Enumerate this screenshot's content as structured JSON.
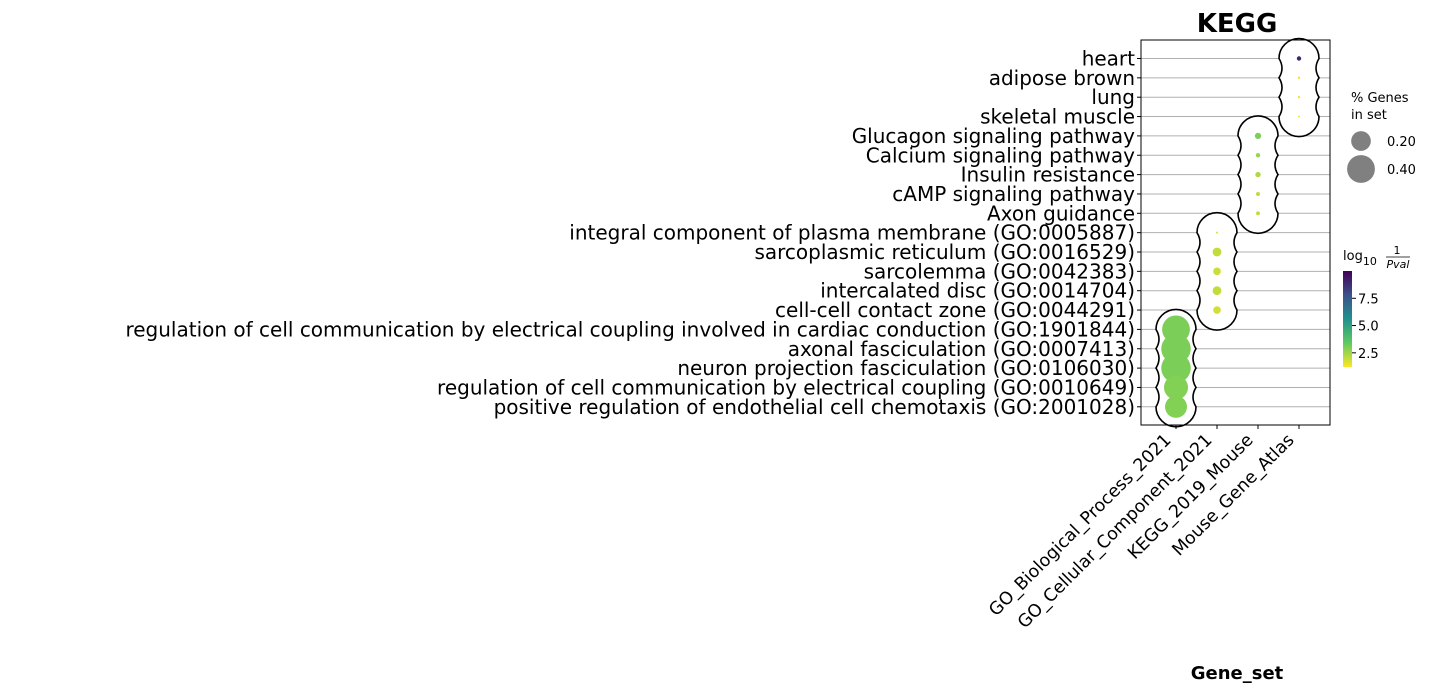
{
  "chart_data": {
    "type": "scatter",
    "title": "KEGG",
    "xlabel": "Gene_set",
    "x_categories": [
      "GO_Biological_Process_2021",
      "GO_Cellular_Component_2021",
      "KEGG_2019_Mouse",
      "Mouse_Gene_Atlas"
    ],
    "y_categories": [
      "heart",
      "adipose brown",
      "lung",
      "skeletal muscle",
      "Glucagon signaling pathway",
      "Calcium signaling pathway",
      "Insulin resistance",
      "cAMP signaling pathway",
      "Axon guidance",
      "integral component of plasma membrane (GO:0005887)",
      "sarcoplasmic reticulum (GO:0016529)",
      "sarcolemma (GO:0042383)",
      "intercalated disc (GO:0014704)",
      "cell-cell contact zone (GO:0044291)",
      "regulation of cell communication by electrical coupling involved in cardiac conduction (GO:1901844)",
      "axonal fasciculation (GO:0007413)",
      "neuron projection fasciculation (GO:0106030)",
      "regulation of cell communication by electrical coupling (GO:0010649)",
      "positive regulation of endothelial cell chemotaxis (GO:2001028)"
    ],
    "points": [
      {
        "term": "heart",
        "gene_set": "Mouse_Gene_Atlas",
        "pct_genes": 0.01,
        "log10_inv_pval": 9.0
      },
      {
        "term": "adipose brown",
        "gene_set": "Mouse_Gene_Atlas",
        "pct_genes": 0.003,
        "log10_inv_pval": 1.4
      },
      {
        "term": "lung",
        "gene_set": "Mouse_Gene_Atlas",
        "pct_genes": 0.003,
        "log10_inv_pval": 1.4
      },
      {
        "term": "skeletal muscle",
        "gene_set": "Mouse_Gene_Atlas",
        "pct_genes": 0.002,
        "log10_inv_pval": 1.3
      },
      {
        "term": "Glucagon signaling pathway",
        "gene_set": "KEGG_2019_Mouse",
        "pct_genes": 0.02,
        "log10_inv_pval": 3.0
      },
      {
        "term": "Calcium signaling pathway",
        "gene_set": "KEGG_2019_Mouse",
        "pct_genes": 0.01,
        "log10_inv_pval": 2.6
      },
      {
        "term": "Insulin resistance",
        "gene_set": "KEGG_2019_Mouse",
        "pct_genes": 0.015,
        "log10_inv_pval": 2.3
      },
      {
        "term": "cAMP signaling pathway",
        "gene_set": "KEGG_2019_Mouse",
        "pct_genes": 0.008,
        "log10_inv_pval": 2.1
      },
      {
        "term": "Axon guidance",
        "gene_set": "KEGG_2019_Mouse",
        "pct_genes": 0.008,
        "log10_inv_pval": 2.0
      },
      {
        "term": "integral component of plasma membrane (GO:0005887)",
        "gene_set": "GO_Cellular_Component_2021",
        "pct_genes": 0.002,
        "log10_inv_pval": 1.8
      },
      {
        "term": "sarcoplasmic reticulum (GO:0016529)",
        "gene_set": "GO_Cellular_Component_2021",
        "pct_genes": 0.04,
        "log10_inv_pval": 2.0
      },
      {
        "term": "sarcolemma (GO:0042383)",
        "gene_set": "GO_Cellular_Component_2021",
        "pct_genes": 0.03,
        "log10_inv_pval": 1.9
      },
      {
        "term": "intercalated disc (GO:0014704)",
        "gene_set": "GO_Cellular_Component_2021",
        "pct_genes": 0.04,
        "log10_inv_pval": 2.0
      },
      {
        "term": "cell-cell contact zone (GO:0044291)",
        "gene_set": "GO_Cellular_Component_2021",
        "pct_genes": 0.03,
        "log10_inv_pval": 1.8
      },
      {
        "term": "regulation of cell communication by electrical coupling involved in cardiac conduction (GO:1901844)",
        "gene_set": "GO_Biological_Process_2021",
        "pct_genes": 0.4,
        "log10_inv_pval": 3.0
      },
      {
        "term": "axonal fasciculation (GO:0007413)",
        "gene_set": "GO_Biological_Process_2021",
        "pct_genes": 0.45,
        "log10_inv_pval": 3.0
      },
      {
        "term": "neuron projection fasciculation (GO:0106030)",
        "gene_set": "GO_Biological_Process_2021",
        "pct_genes": 0.45,
        "log10_inv_pval": 3.0
      },
      {
        "term": "regulation of cell communication by electrical coupling (GO:0010649)",
        "gene_set": "GO_Biological_Process_2021",
        "pct_genes": 0.3,
        "log10_inv_pval": 2.9
      },
      {
        "term": "positive regulation of endothelial cell chemotaxis (GO:2001028)",
        "gene_set": "GO_Biological_Process_2021",
        "pct_genes": 0.25,
        "log10_inv_pval": 2.9
      }
    ],
    "size_legend": {
      "title_lines": [
        "% Genes",
        "in set"
      ],
      "entries": [
        {
          "value": 0.2,
          "label": "0.20"
        },
        {
          "value": 0.4,
          "label": "0.40"
        }
      ]
    },
    "color_legend": {
      "title_prefix": "log",
      "title_sub": "10",
      "title_numerator": "1",
      "title_denominator": "Pval",
      "colormap": "viridis_r",
      "range": [
        1.2,
        10.0
      ],
      "ticks": [
        {
          "value": 2.5,
          "label": "2.5"
        },
        {
          "value": 5.0,
          "label": "5.0"
        },
        {
          "value": 7.5,
          "label": "7.5"
        }
      ]
    },
    "grid": true
  }
}
